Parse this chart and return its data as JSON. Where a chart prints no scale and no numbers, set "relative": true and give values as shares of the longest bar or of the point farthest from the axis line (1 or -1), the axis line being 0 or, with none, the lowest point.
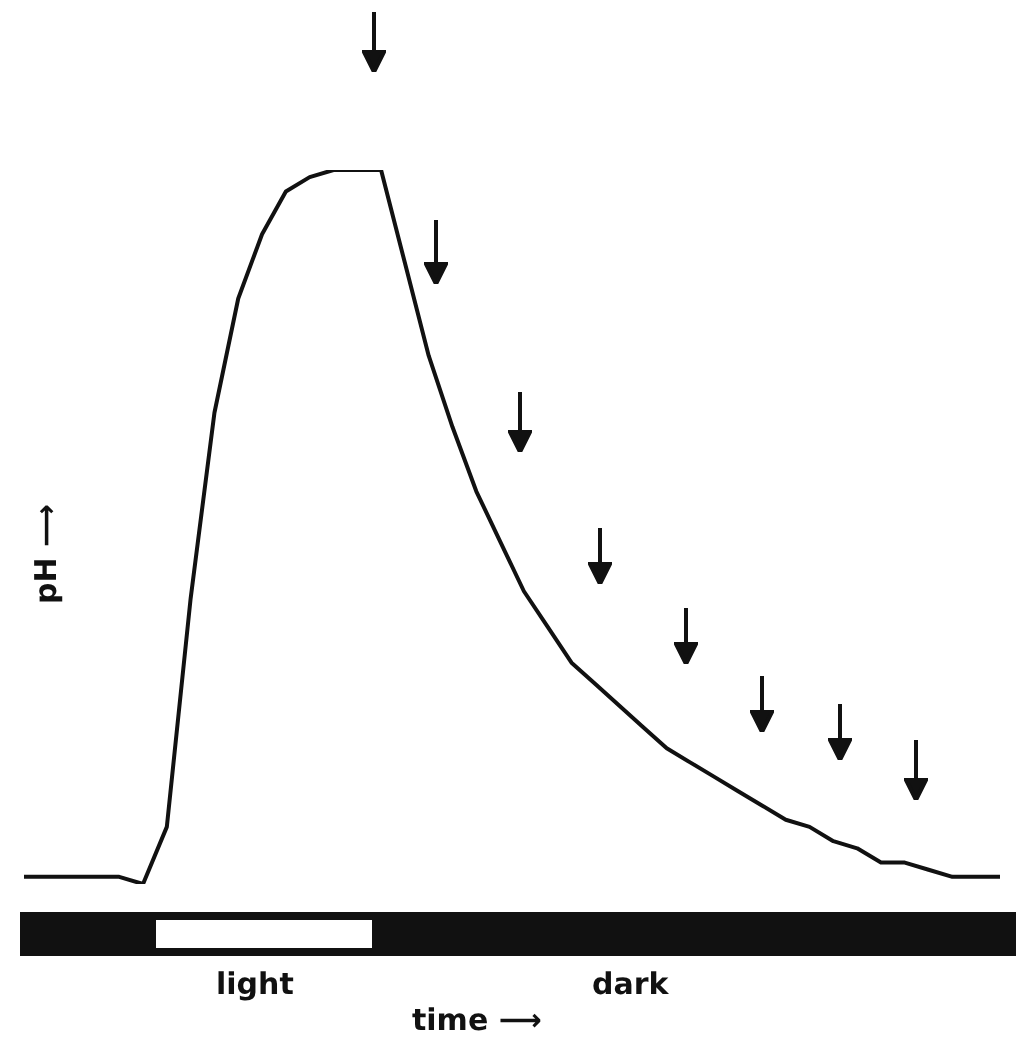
{
  "chart_data": {
    "type": "line",
    "relative": true,
    "color": "#111111",
    "ylabel": "pH ⟶",
    "xlabel": "time ⟶",
    "annotations": [
      "light",
      "dark"
    ],
    "categories": [
      null,
      null,
      null,
      null,
      null,
      null,
      null,
      null,
      null,
      null,
      null,
      null,
      null,
      null,
      null,
      null,
      null,
      null,
      null,
      null,
      null,
      null,
      null,
      null,
      null,
      null,
      null,
      null,
      null,
      null,
      null,
      null,
      null,
      null,
      null,
      null,
      null,
      null,
      null,
      null,
      null,
      null
    ],
    "values": [
      0.01,
      0.01,
      0.01,
      0.01,
      0.01,
      0,
      0.08,
      0.4,
      0.66,
      0.82,
      0.91,
      0.97,
      0.99,
      1,
      1,
      1,
      0.87,
      0.74,
      0.64,
      0.55,
      0.48,
      0.41,
      0.36,
      0.31,
      0.28,
      0.25,
      0.22,
      0.19,
      0.17,
      0.15,
      0.13,
      0.11,
      0.09,
      0.08,
      0.06,
      0.05,
      0.03,
      0.03,
      0.02,
      0.01,
      0.01,
      0.01
    ]
  }
}
